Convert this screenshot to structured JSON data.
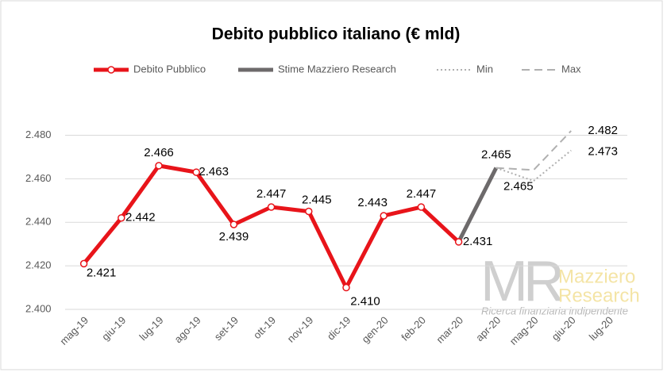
{
  "chart_data": {
    "type": "line",
    "title": "Debito pubblico italiano (€ mld)",
    "categories": [
      "mag-19",
      "giu-19",
      "lug-19",
      "ago-19",
      "set-19",
      "ott-19",
      "nov-19",
      "dic-19",
      "gen-20",
      "feb-20",
      "mar-20",
      "apr-20",
      "mag-20",
      "giu-20",
      "lug-20"
    ],
    "series": [
      {
        "name": "Debito Pubblico",
        "color": "#e8141a",
        "values": [
          2421,
          2442,
          2466,
          2463,
          2439,
          2447,
          2445,
          2410,
          2443,
          2447,
          2431,
          null,
          null,
          null,
          null
        ],
        "value_labels": [
          "2.421",
          "2.442",
          "2.466",
          "2.463",
          "2.439",
          "2.447",
          "2.445",
          "2.410",
          "2.443",
          "2.447",
          "2.431",
          null,
          null,
          null,
          null
        ]
      },
      {
        "name": "Stime Mazziero Research",
        "color": "#6d6a6b",
        "values": [
          null,
          null,
          null,
          null,
          null,
          null,
          null,
          null,
          null,
          null,
          2431,
          2465,
          null,
          null,
          null
        ],
        "value_labels": [
          null,
          null,
          null,
          null,
          null,
          null,
          null,
          null,
          null,
          null,
          null,
          "2.465",
          null,
          null,
          null
        ]
      },
      {
        "name": "Min",
        "color": "#b0b0b0",
        "values": [
          null,
          null,
          null,
          null,
          null,
          null,
          null,
          null,
          null,
          null,
          null,
          2465,
          2459,
          2473,
          null
        ],
        "value_labels": [
          null,
          null,
          null,
          null,
          null,
          null,
          null,
          null,
          null,
          null,
          null,
          "2.465",
          null,
          "2.473",
          null
        ]
      },
      {
        "name": "Max",
        "color": "#b0b0b0",
        "values": [
          null,
          null,
          null,
          null,
          null,
          null,
          null,
          null,
          null,
          null,
          null,
          2465,
          2464,
          2482,
          null
        ],
        "value_labels": [
          null,
          null,
          null,
          null,
          null,
          null,
          null,
          null,
          null,
          null,
          null,
          null,
          null,
          "2.482",
          null
        ]
      }
    ],
    "ylim": [
      2400,
      2490
    ],
    "yticks": [
      {
        "value": 2400,
        "label": "2.400"
      },
      {
        "value": 2420,
        "label": "2.420"
      },
      {
        "value": 2440,
        "label": "2.440"
      },
      {
        "value": 2460,
        "label": "2.460"
      },
      {
        "value": 2480,
        "label": "2.480"
      }
    ],
    "grid": true,
    "legend": "top",
    "watermark": {
      "logo": "MR",
      "line1": "Mazziero",
      "line2": "Research",
      "tagline": "Ricerca finanziaria indipendente"
    }
  }
}
